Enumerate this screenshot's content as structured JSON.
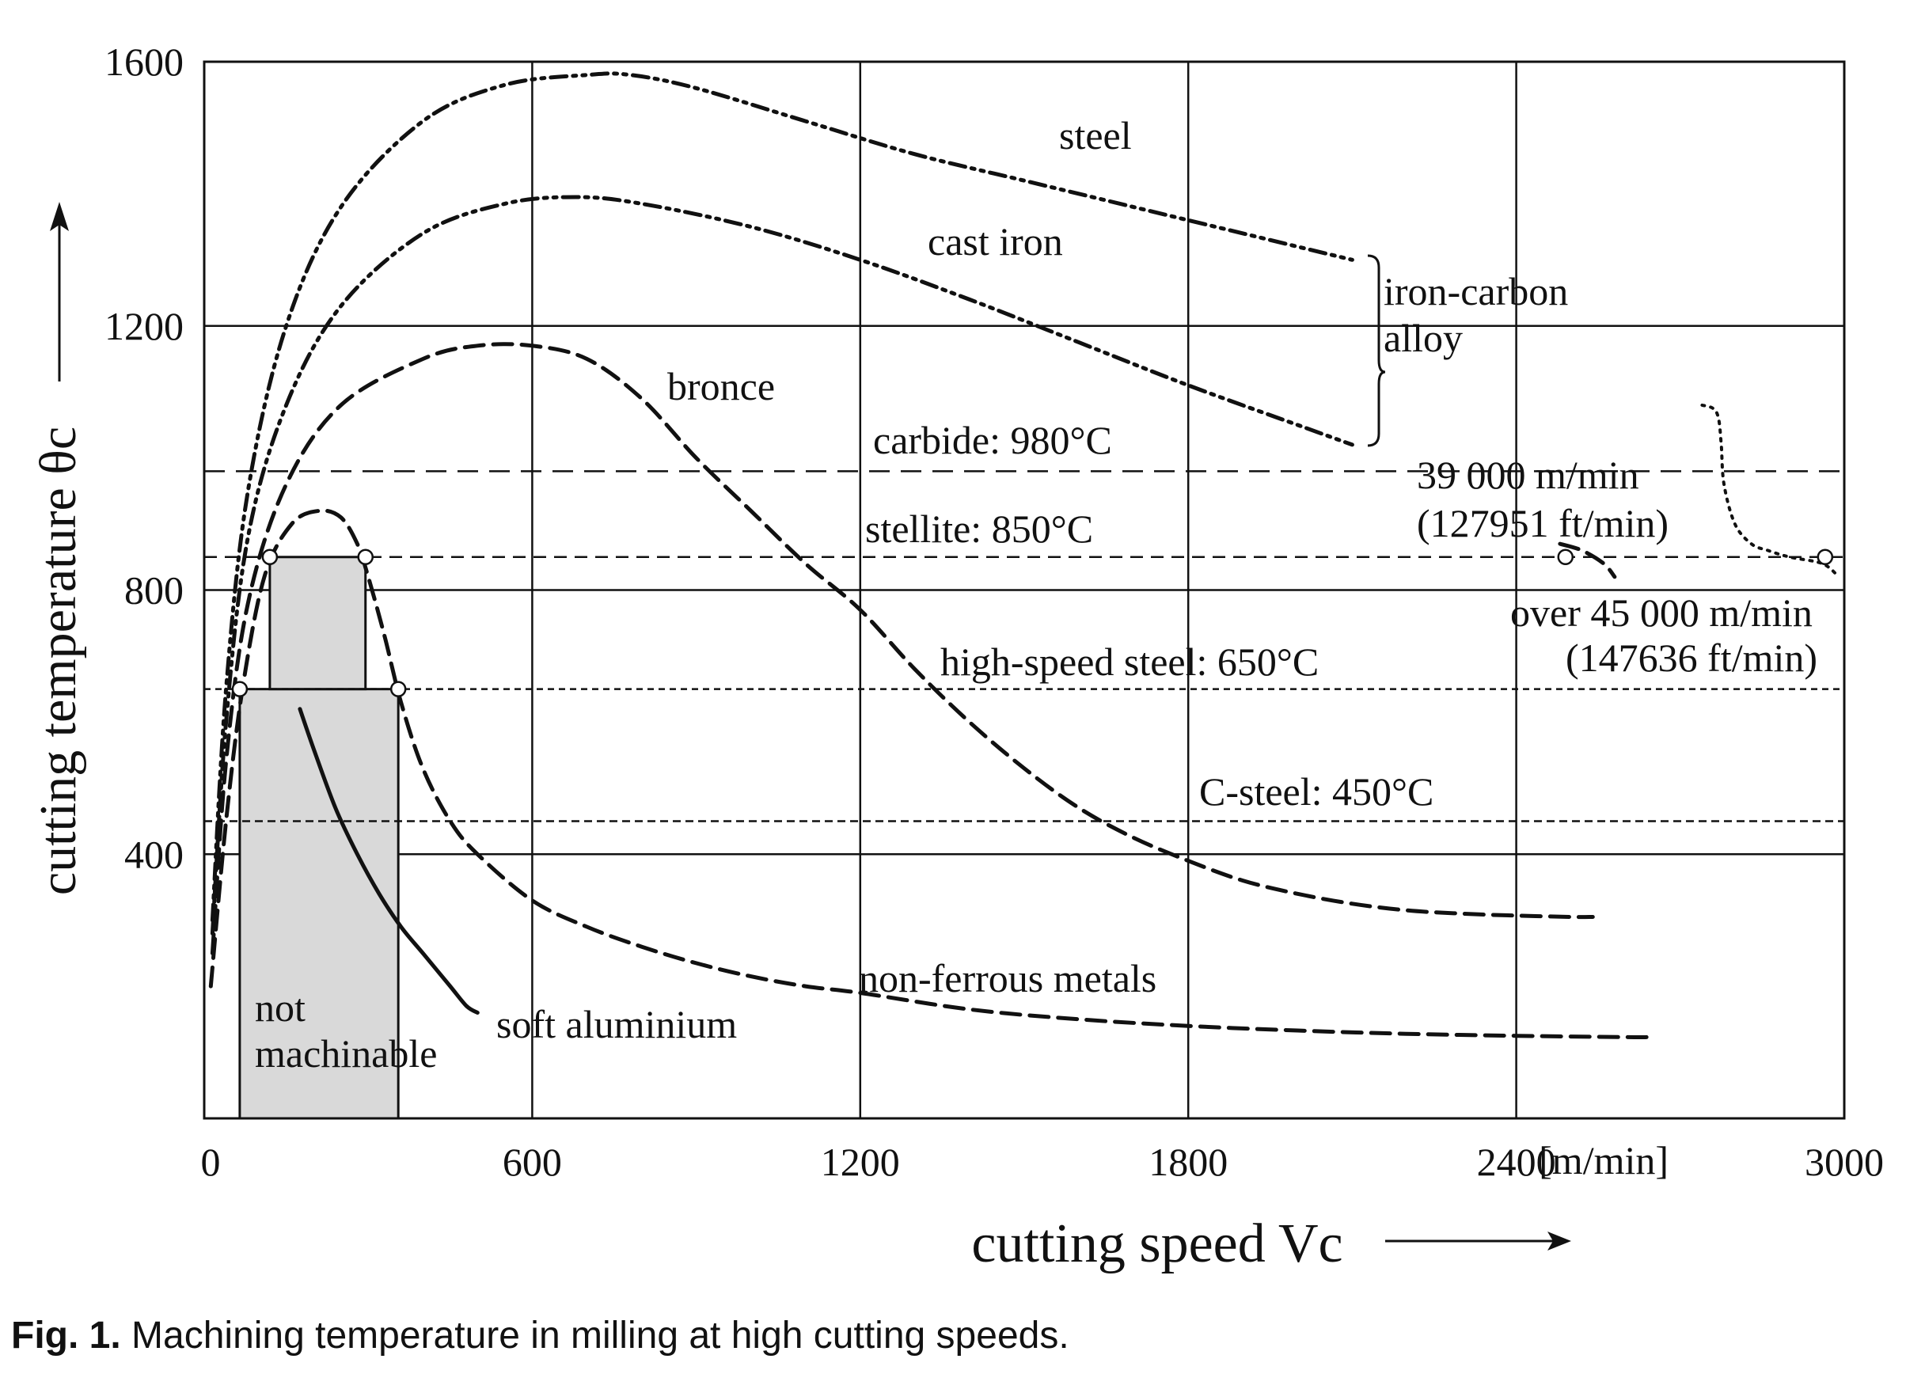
{
  "chart_data": {
    "type": "line",
    "title": "",
    "xlabel": "cutting speed Vc",
    "ylabel": "cutting temperature θc",
    "x_unit": "[m/min]",
    "xlim": [
      0,
      3000
    ],
    "ylim": [
      0,
      1600
    ],
    "x_ticks": [
      "0",
      "600",
      "1200",
      "1800",
      "2400",
      "3000"
    ],
    "y_ticks": [
      "400",
      "800",
      "1200",
      "1600"
    ],
    "series": [
      {
        "name": "steel",
        "style": "dash-dot-dot",
        "x": [
          15,
          40,
          80,
          150,
          250,
          400,
          550,
          700,
          780,
          900,
          1100,
          1300,
          1500,
          1700,
          1900,
          2100
        ],
        "y": [
          300,
          650,
          950,
          1200,
          1380,
          1510,
          1565,
          1580,
          1580,
          1560,
          1510,
          1460,
          1420,
          1380,
          1340,
          1300
        ]
      },
      {
        "name": "cast iron",
        "style": "dash-dot-dot",
        "x": [
          15,
          40,
          80,
          150,
          250,
          400,
          550,
          680,
          800,
          1000,
          1200,
          1400,
          1600,
          1800,
          2000,
          2100
        ],
        "y": [
          280,
          600,
          880,
          1080,
          1230,
          1340,
          1385,
          1395,
          1385,
          1350,
          1300,
          1240,
          1175,
          1110,
          1050,
          1020
        ]
      },
      {
        "name": "bronce",
        "style": "dashed",
        "x": [
          15,
          40,
          80,
          150,
          250,
          400,
          500,
          600,
          700,
          800,
          900,
          1000,
          1100,
          1200,
          1300,
          1400,
          1500,
          1600,
          1700,
          1800,
          1900,
          2000,
          2100,
          2200,
          2300,
          2400,
          2500,
          2540
        ],
        "y": [
          250,
          540,
          780,
          960,
          1080,
          1150,
          1170,
          1170,
          1150,
          1090,
          1000,
          920,
          840,
          770,
          680,
          600,
          530,
          470,
          425,
          390,
          360,
          340,
          325,
          315,
          310,
          307,
          305,
          305
        ]
      },
      {
        "name": "non-ferrous metals",
        "style": "dashed",
        "x": [
          12,
          40,
          70,
          110,
          160,
          210,
          250,
          280,
          300,
          330,
          360,
          400,
          450,
          500,
          600,
          700,
          800,
          900,
          1000,
          1100,
          1200,
          1400,
          1600,
          1800,
          2000,
          2200,
          2400,
          2600,
          2640
        ],
        "y": [
          200,
          450,
          650,
          820,
          900,
          920,
          910,
          870,
          820,
          730,
          630,
          530,
          450,
          400,
          330,
          290,
          260,
          235,
          215,
          200,
          190,
          165,
          150,
          140,
          133,
          128,
          125,
          123,
          123
        ]
      },
      {
        "name": "soft aluminium",
        "style": "solid",
        "x": [
          175,
          200,
          240,
          280,
          320,
          360,
          400,
          450,
          480,
          500
        ],
        "y": [
          620,
          560,
          470,
          400,
          340,
          290,
          250,
          200,
          170,
          160
        ]
      },
      {
        "name": "over 45 000 m/min",
        "style": "dotted",
        "x": [
          2740,
          2760,
          2770,
          2775,
          2780,
          2800,
          2830,
          2860,
          2900,
          2960,
          2990
        ],
        "y": [
          1080,
          1075,
          1060,
          1020,
          960,
          900,
          870,
          860,
          850,
          840,
          820
        ]
      },
      {
        "name": "39 000 m/min",
        "style": "dashed",
        "x": [
          2480,
          2520,
          2560,
          2580
        ],
        "y": [
          870,
          860,
          840,
          820
        ]
      }
    ],
    "reference_lines": [
      {
        "label": "carbide: 980°C",
        "y": 980,
        "style": "long-dash"
      },
      {
        "label": "stellite: 850°C",
        "y": 850,
        "style": "dashed"
      },
      {
        "label": "high-speed steel: 650°C",
        "y": 650,
        "style": "short-dash"
      },
      {
        "label": "C-steel: 450°C",
        "y": 450,
        "style": "dotted-dash"
      }
    ],
    "regions": [
      {
        "label": "not machinable",
        "x": [
          65,
          355
        ],
        "y": [
          0,
          650
        ]
      },
      {
        "label": "",
        "x": [
          120,
          295
        ],
        "y": [
          650,
          850
        ]
      }
    ],
    "intersection_markers": [
      {
        "x": 65,
        "y": 650
      },
      {
        "x": 120,
        "y": 850
      },
      {
        "x": 295,
        "y": 850
      },
      {
        "x": 355,
        "y": 650
      },
      {
        "x": 2490,
        "y": 850
      },
      {
        "x": 2965,
        "y": 850
      }
    ],
    "annotations": [
      {
        "text": "steel"
      },
      {
        "text": "cast iron"
      },
      {
        "text": "iron-carbon"
      },
      {
        "text": "alloy"
      },
      {
        "text": "bronce"
      },
      {
        "text": "39 000 m/min"
      },
      {
        "text": "(127951 ft/min)"
      },
      {
        "text": "over 45 000 m/min"
      },
      {
        "text": "(147636 ft/min)"
      },
      {
        "text": "non-ferrous metals"
      },
      {
        "text": "soft aluminium"
      },
      {
        "text": "not"
      },
      {
        "text": "machinable"
      }
    ],
    "grid": true,
    "legend": "none"
  },
  "caption": {
    "label": "Fig. 1.",
    "text": " Machining temperature in milling at high cutting speeds."
  }
}
